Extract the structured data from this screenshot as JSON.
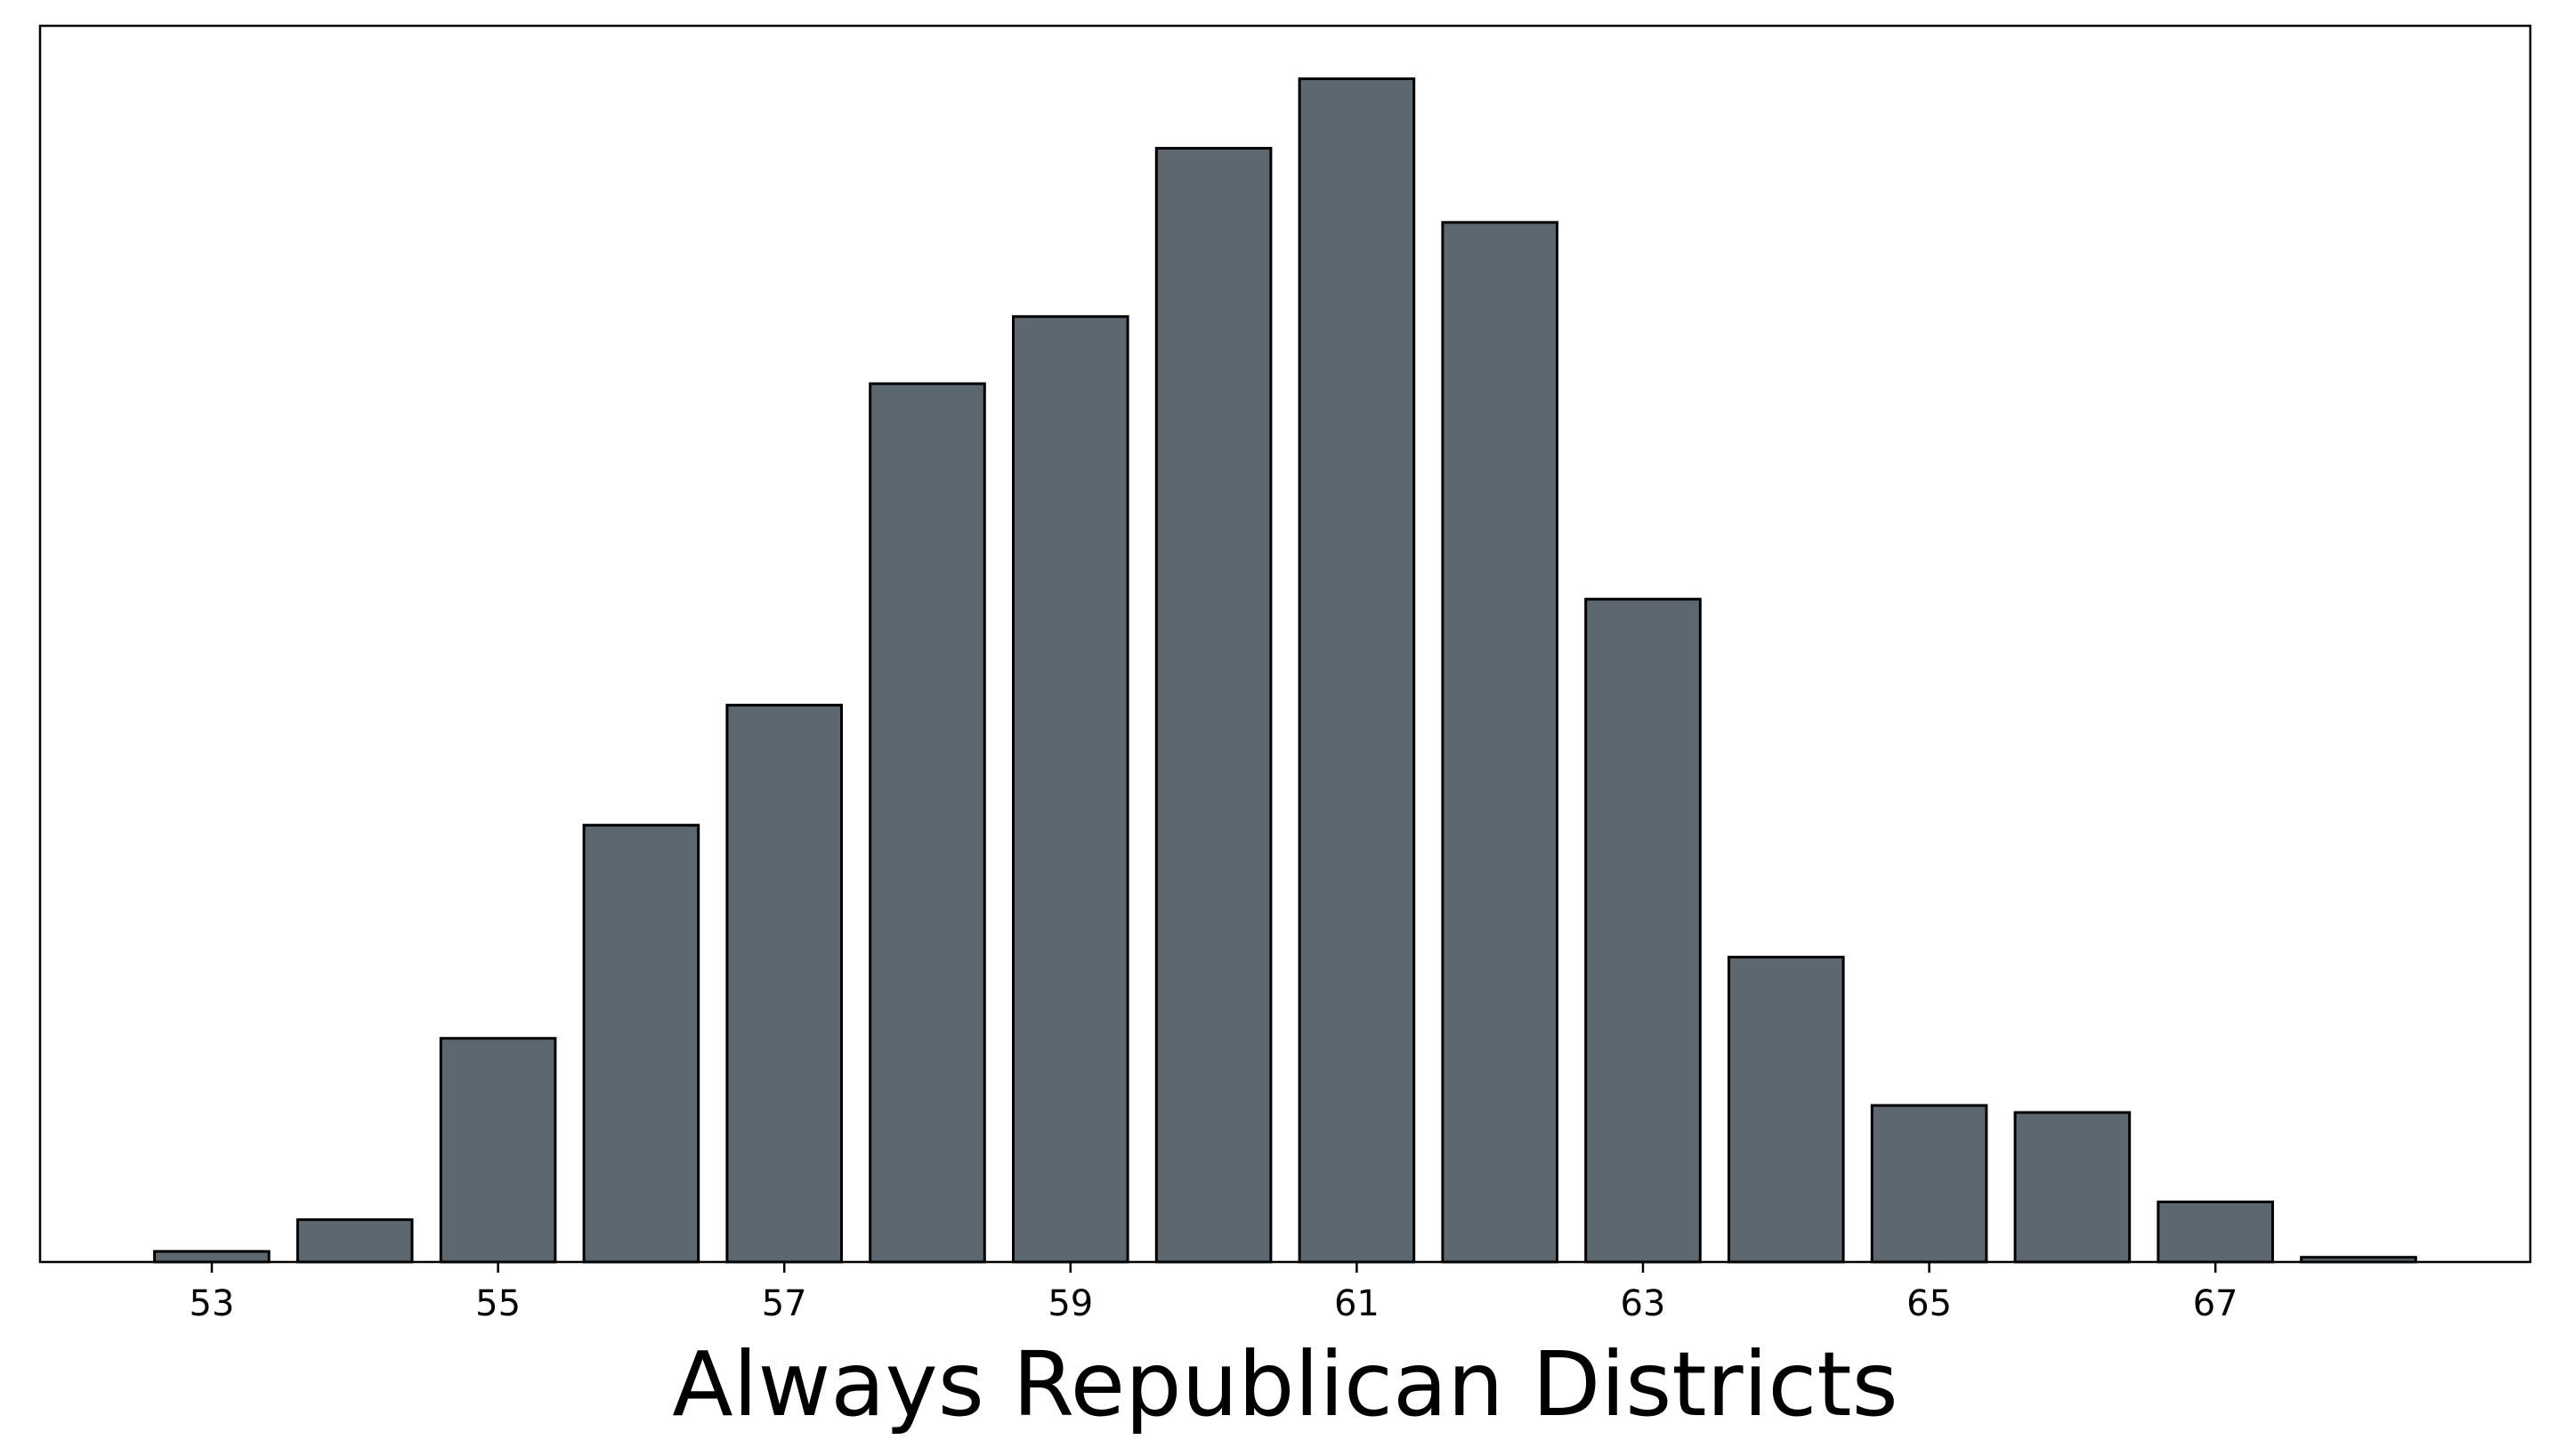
{
  "chart_data": {
    "type": "bar",
    "xlabel": "Always Republican Districts",
    "ylabel": "",
    "x": [
      53,
      54,
      55,
      56,
      57,
      58,
      59,
      60,
      61,
      62,
      63,
      64,
      65,
      66,
      67,
      68
    ],
    "values": [
      0.9,
      3.6,
      19.0,
      37.1,
      47.3,
      74.6,
      80.3,
      94.6,
      100.5,
      88.3,
      56.3,
      25.9,
      13.3,
      12.7,
      5.1,
      0.4
    ],
    "xticks": [
      53,
      55,
      57,
      59,
      61,
      63,
      65,
      67
    ],
    "xlim": [
      51.8,
      69.2
    ],
    "ylim": [
      0,
      105
    ],
    "yaxis_labels_shown": false,
    "grid": false,
    "bar_color": "#5d6770",
    "bar_edge_color": "#000000"
  }
}
